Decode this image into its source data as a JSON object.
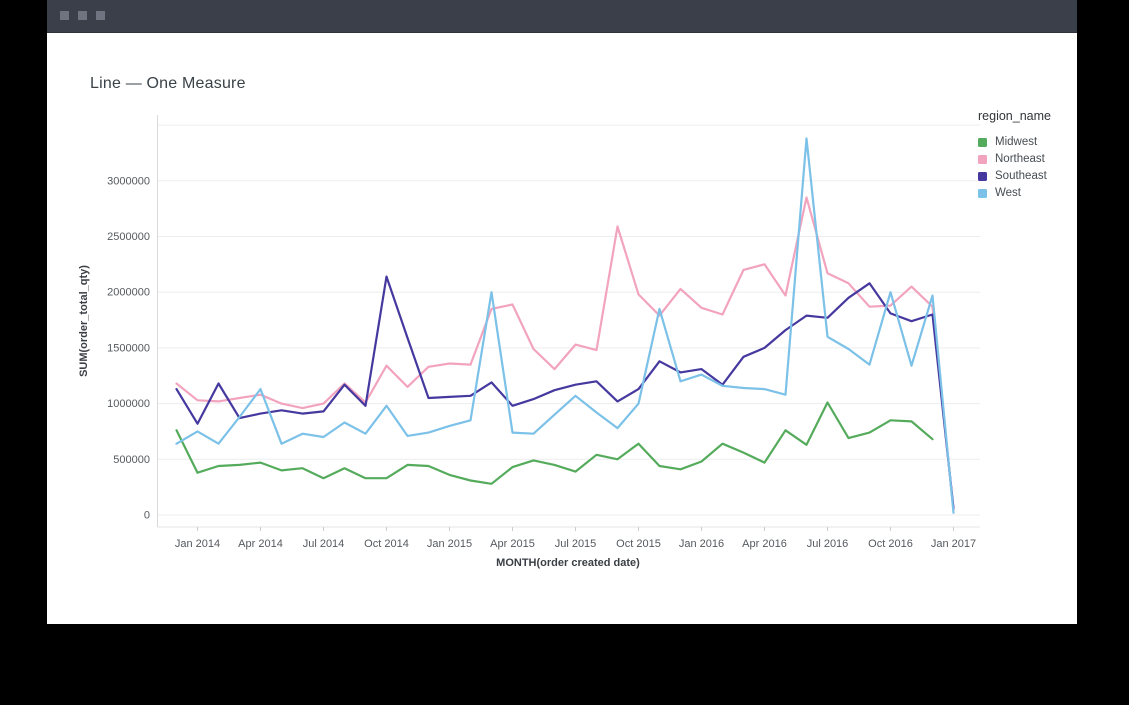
{
  "window": {
    "titlebar_buttons": [
      "window-button",
      "window-button",
      "window-button"
    ]
  },
  "chart_data": {
    "type": "line",
    "title": "Line — One Measure",
    "xlabel": "MONTH(order created date)",
    "ylabel": "SUM(order_total_qty)",
    "legend_title": "region_name",
    "legend_position": "right",
    "grid": true,
    "ylim": [
      0,
      3500000
    ],
    "ytick_step": 500000,
    "ytick_labels": [
      "0",
      "500000",
      "1000000",
      "1500000",
      "2000000",
      "2500000",
      "3000000"
    ],
    "x_tick_labels": [
      "Jan 2014",
      "Apr 2014",
      "Jul 2014",
      "Oct 2014",
      "Jan 2015",
      "Apr 2015",
      "Jul 2015",
      "Oct 2015",
      "Jan 2016",
      "Apr 2016",
      "Jul 2016",
      "Oct 2016",
      "Jan 2017"
    ],
    "categories": [
      "Dec 2013",
      "Jan 2014",
      "Feb 2014",
      "Mar 2014",
      "Apr 2014",
      "May 2014",
      "Jun 2014",
      "Jul 2014",
      "Aug 2014",
      "Sep 2014",
      "Oct 2014",
      "Nov 2014",
      "Dec 2014",
      "Jan 2015",
      "Feb 2015",
      "Mar 2015",
      "Apr 2015",
      "May 2015",
      "Jun 2015",
      "Jul 2015",
      "Aug 2015",
      "Sep 2015",
      "Oct 2015",
      "Nov 2015",
      "Dec 2015",
      "Jan 2016",
      "Feb 2016",
      "Mar 2016",
      "Apr 2016",
      "May 2016",
      "Jun 2016",
      "Jul 2016",
      "Aug 2016",
      "Sep 2016",
      "Oct 2016",
      "Nov 2016",
      "Dec 2016",
      "Jan 2017"
    ],
    "series": [
      {
        "name": "Midwest",
        "color": "#55AB5C",
        "values": [
          760000,
          380000,
          440000,
          450000,
          470000,
          400000,
          420000,
          330000,
          420000,
          330000,
          330000,
          450000,
          440000,
          360000,
          310000,
          280000,
          430000,
          490000,
          450000,
          390000,
          540000,
          500000,
          640000,
          440000,
          410000,
          480000,
          640000,
          560000,
          470000,
          760000,
          630000,
          1010000,
          690000,
          740000,
          850000,
          840000,
          680000,
          null
        ]
      },
      {
        "name": "Northeast",
        "color": "#F2A3BE",
        "values": [
          1180000,
          1030000,
          1020000,
          1050000,
          1080000,
          1000000,
          960000,
          1000000,
          1180000,
          1010000,
          1340000,
          1150000,
          1330000,
          1360000,
          1350000,
          1850000,
          1890000,
          1490000,
          1310000,
          1530000,
          1480000,
          2590000,
          1980000,
          1790000,
          2030000,
          1860000,
          1800000,
          2200000,
          2250000,
          1970000,
          2850000,
          2170000,
          2080000,
          1870000,
          1880000,
          2050000,
          1870000,
          40000
        ]
      },
      {
        "name": "Southeast",
        "color": "#45399F",
        "values": [
          1130000,
          820000,
          1180000,
          870000,
          910000,
          940000,
          910000,
          930000,
          1170000,
          980000,
          2140000,
          1590000,
          1050000,
          1060000,
          1070000,
          1190000,
          980000,
          1040000,
          1120000,
          1170000,
          1200000,
          1020000,
          1130000,
          1380000,
          1280000,
          1310000,
          1170000,
          1420000,
          1500000,
          1660000,
          1790000,
          1770000,
          1950000,
          2080000,
          1810000,
          1740000,
          1800000,
          60000
        ]
      },
      {
        "name": "West",
        "color": "#7CC1E8",
        "values": [
          640000,
          750000,
          640000,
          880000,
          1130000,
          640000,
          730000,
          700000,
          830000,
          730000,
          980000,
          710000,
          740000,
          800000,
          850000,
          2000000,
          740000,
          730000,
          900000,
          1070000,
          920000,
          780000,
          1000000,
          1850000,
          1200000,
          1260000,
          1160000,
          1140000,
          1130000,
          1080000,
          3380000,
          1600000,
          1490000,
          1350000,
          2000000,
          1340000,
          1970000,
          20000
        ]
      }
    ]
  }
}
